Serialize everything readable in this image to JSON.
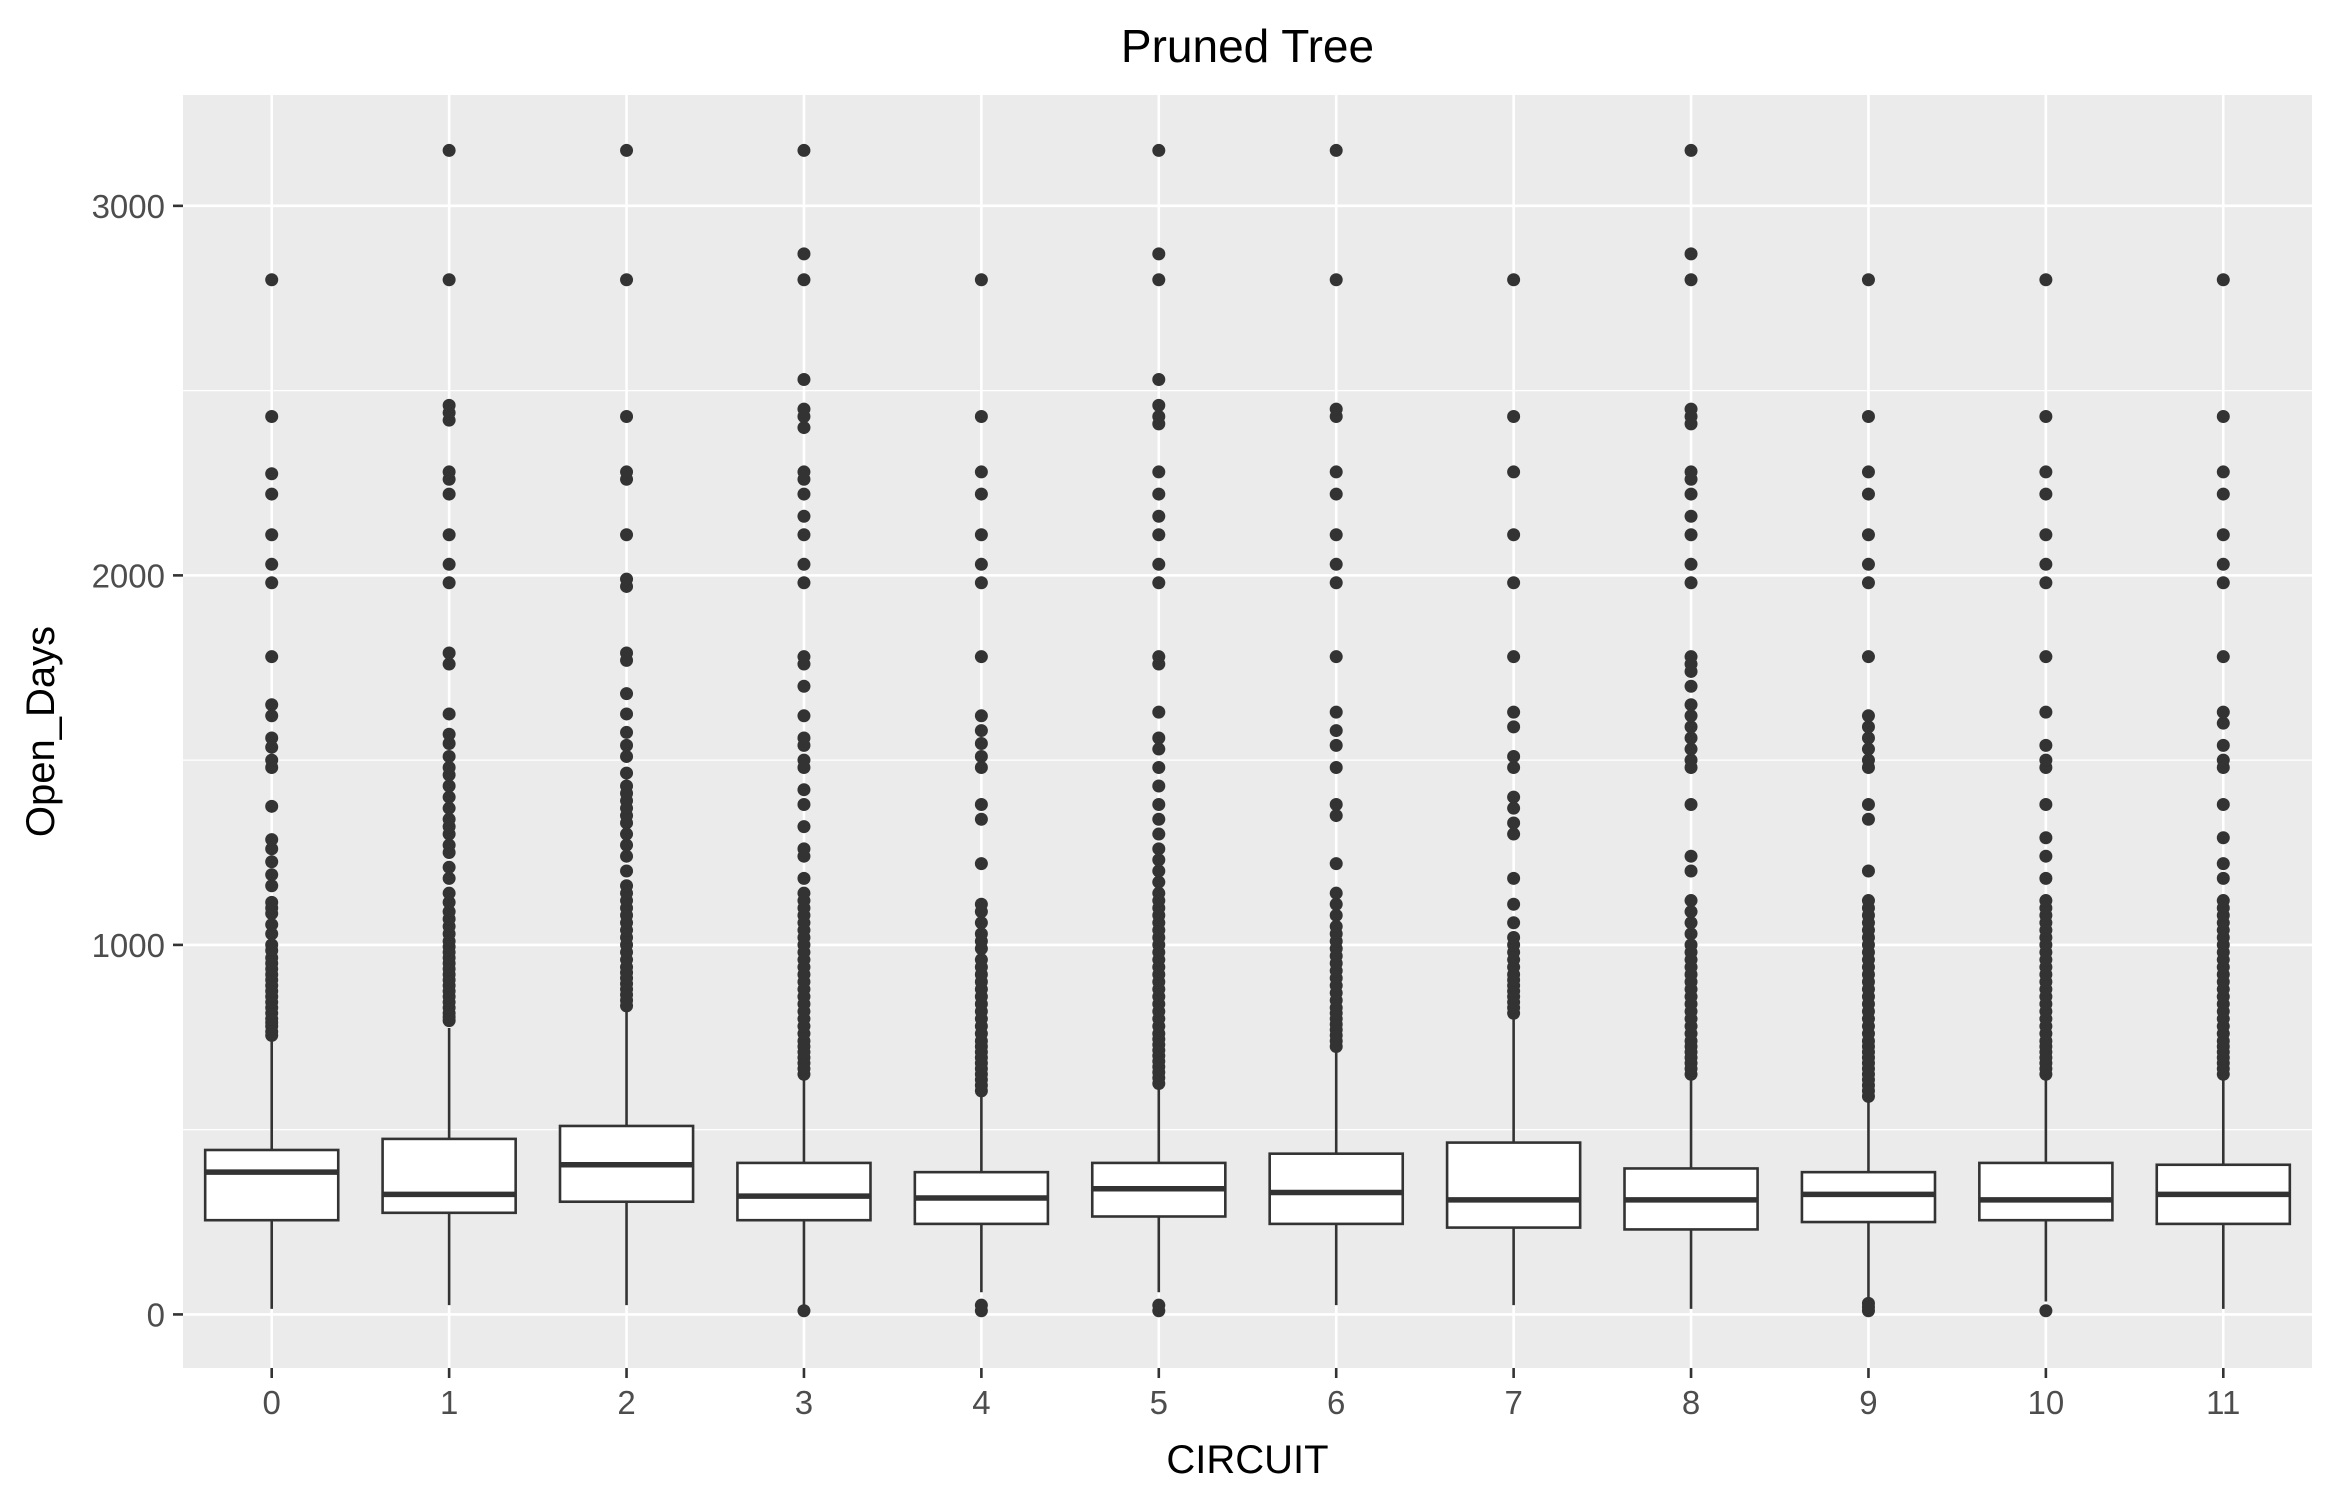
{
  "chart_data": {
    "type": "boxplot",
    "title": "Pruned Tree",
    "xlabel": "CIRCUIT",
    "ylabel": "Open_Days",
    "categories": [
      "0",
      "1",
      "2",
      "3",
      "4",
      "5",
      "6",
      "7",
      "8",
      "9",
      "10",
      "11"
    ],
    "ylim": [
      -145,
      3300
    ],
    "y_ticks": [
      0,
      1000,
      2000,
      3000
    ],
    "y_tick_labels": [
      "0",
      "1000",
      "2000",
      "3000"
    ],
    "grid": true,
    "legend": "none",
    "colors": {
      "panel_background": "#ebebeb",
      "grid_major": "#ffffff",
      "box_fill": "#ffffff",
      "box_stroke": "#333333",
      "outlier": "#333333",
      "tick_label": "#4d4d4d"
    },
    "boxes": [
      {
        "category": "0",
        "whisker_low": 15,
        "q1": 255,
        "median": 385,
        "q3": 445,
        "whisker_high": 745,
        "outliers": [
          755,
          765,
          780,
          790,
          800,
          815,
          830,
          845,
          860,
          875,
          890,
          905,
          920,
          935,
          950,
          965,
          985,
          1000,
          1030,
          1055,
          1085,
          1100,
          1115,
          1160,
          1190,
          1225,
          1260,
          1285,
          1375,
          1480,
          1500,
          1535,
          1560,
          1620,
          1650,
          1780,
          1980,
          2030,
          2110,
          2220,
          2275,
          2430,
          2800
        ]
      },
      {
        "category": "1",
        "whisker_low": 25,
        "q1": 275,
        "median": 325,
        "q3": 475,
        "whisker_high": 775,
        "outliers": [
          795,
          805,
          815,
          830,
          845,
          860,
          875,
          890,
          905,
          920,
          935,
          950,
          965,
          980,
          995,
          1010,
          1030,
          1050,
          1070,
          1090,
          1115,
          1140,
          1180,
          1210,
          1250,
          1270,
          1300,
          1320,
          1340,
          1370,
          1400,
          1430,
          1460,
          1480,
          1510,
          1545,
          1570,
          1625,
          1760,
          1790,
          1980,
          2030,
          2110,
          2220,
          2260,
          2280,
          2420,
          2440,
          2460,
          2800,
          3150
        ]
      },
      {
        "category": "2",
        "whisker_low": 25,
        "q1": 305,
        "median": 405,
        "q3": 510,
        "whisker_high": 825,
        "outliers": [
          835,
          850,
          865,
          880,
          895,
          910,
          925,
          940,
          960,
          980,
          1000,
          1020,
          1040,
          1060,
          1080,
          1100,
          1120,
          1140,
          1160,
          1200,
          1240,
          1270,
          1300,
          1330,
          1350,
          1370,
          1390,
          1410,
          1430,
          1465,
          1510,
          1540,
          1575,
          1625,
          1680,
          1770,
          1790,
          1970,
          1990,
          2110,
          2260,
          2280,
          2430,
          2800,
          3150
        ]
      },
      {
        "category": "3",
        "whisker_low": 25,
        "q1": 255,
        "median": 320,
        "q3": 410,
        "whisker_high": 640,
        "outliers": [
          10,
          650,
          665,
          680,
          695,
          710,
          725,
          740,
          760,
          780,
          800,
          820,
          840,
          860,
          880,
          900,
          920,
          940,
          960,
          980,
          1000,
          1020,
          1040,
          1060,
          1080,
          1100,
          1120,
          1140,
          1180,
          1240,
          1260,
          1320,
          1380,
          1420,
          1480,
          1500,
          1540,
          1560,
          1620,
          1700,
          1760,
          1780,
          1980,
          2030,
          2110,
          2160,
          2220,
          2260,
          2280,
          2400,
          2430,
          2450,
          2530,
          2800,
          2870,
          3150
        ]
      },
      {
        "category": "4",
        "whisker_low": 60,
        "q1": 245,
        "median": 315,
        "q3": 385,
        "whisker_high": 595,
        "outliers": [
          10,
          25,
          605,
          620,
          635,
          650,
          665,
          680,
          695,
          710,
          725,
          740,
          760,
          780,
          800,
          820,
          840,
          860,
          880,
          900,
          920,
          940,
          960,
          990,
          1010,
          1030,
          1060,
          1090,
          1110,
          1220,
          1340,
          1380,
          1480,
          1510,
          1545,
          1580,
          1620,
          1780,
          1980,
          2030,
          2110,
          2220,
          2280,
          2430,
          2800
        ]
      },
      {
        "category": "5",
        "whisker_low": 60,
        "q1": 265,
        "median": 340,
        "q3": 410,
        "whisker_high": 615,
        "outliers": [
          10,
          25,
          625,
          640,
          655,
          670,
          685,
          700,
          715,
          730,
          745,
          760,
          780,
          800,
          820,
          840,
          860,
          880,
          900,
          920,
          940,
          960,
          980,
          1000,
          1020,
          1040,
          1060,
          1080,
          1100,
          1120,
          1140,
          1170,
          1200,
          1230,
          1260,
          1300,
          1340,
          1380,
          1430,
          1480,
          1530,
          1560,
          1630,
          1760,
          1780,
          1980,
          2030,
          2110,
          2160,
          2220,
          2280,
          2410,
          2430,
          2460,
          2530,
          2800,
          2870,
          3150
        ]
      },
      {
        "category": "6",
        "whisker_low": 25,
        "q1": 245,
        "median": 330,
        "q3": 435,
        "whisker_high": 715,
        "outliers": [
          725,
          740,
          755,
          770,
          785,
          800,
          815,
          830,
          850,
          870,
          890,
          910,
          930,
          950,
          970,
          990,
          1010,
          1030,
          1050,
          1080,
          1110,
          1140,
          1220,
          1350,
          1380,
          1480,
          1540,
          1580,
          1630,
          1780,
          1980,
          2030,
          2110,
          2220,
          2280,
          2430,
          2450,
          2800,
          3150
        ]
      },
      {
        "category": "7",
        "whisker_low": 25,
        "q1": 235,
        "median": 310,
        "q3": 465,
        "whisker_high": 805,
        "outliers": [
          815,
          830,
          845,
          860,
          875,
          890,
          905,
          920,
          940,
          960,
          980,
          1000,
          1020,
          1060,
          1110,
          1180,
          1300,
          1330,
          1370,
          1400,
          1480,
          1510,
          1590,
          1630,
          1780,
          1980,
          2110,
          2280,
          2430,
          2800
        ]
      },
      {
        "category": "8",
        "whisker_low": 15,
        "q1": 230,
        "median": 310,
        "q3": 395,
        "whisker_high": 640,
        "outliers": [
          650,
          665,
          680,
          695,
          710,
          725,
          740,
          760,
          780,
          800,
          820,
          840,
          860,
          880,
          900,
          920,
          940,
          960,
          980,
          1000,
          1030,
          1060,
          1090,
          1120,
          1200,
          1240,
          1380,
          1480,
          1500,
          1530,
          1560,
          1590,
          1620,
          1650,
          1700,
          1740,
          1760,
          1780,
          1980,
          2030,
          2110,
          2160,
          2220,
          2260,
          2280,
          2410,
          2430,
          2450,
          2800,
          2870,
          3150
        ]
      },
      {
        "category": "9",
        "whisker_low": 45,
        "q1": 250,
        "median": 325,
        "q3": 385,
        "whisker_high": 580,
        "outliers": [
          10,
          20,
          30,
          590,
          605,
          620,
          635,
          650,
          665,
          680,
          695,
          710,
          725,
          740,
          760,
          780,
          800,
          820,
          840,
          860,
          880,
          900,
          920,
          940,
          960,
          980,
          1000,
          1020,
          1040,
          1060,
          1080,
          1100,
          1120,
          1200,
          1340,
          1380,
          1480,
          1500,
          1530,
          1560,
          1590,
          1620,
          1780,
          1980,
          2030,
          2110,
          2220,
          2280,
          2430,
          2800
        ]
      },
      {
        "category": "10",
        "whisker_low": 35,
        "q1": 255,
        "median": 310,
        "q3": 410,
        "whisker_high": 640,
        "outliers": [
          10,
          650,
          665,
          680,
          695,
          710,
          725,
          740,
          760,
          780,
          800,
          820,
          840,
          860,
          880,
          900,
          920,
          940,
          960,
          980,
          1000,
          1020,
          1040,
          1060,
          1080,
          1100,
          1120,
          1180,
          1240,
          1290,
          1380,
          1480,
          1500,
          1540,
          1630,
          1780,
          1980,
          2030,
          2110,
          2220,
          2280,
          2430,
          2800
        ]
      },
      {
        "category": "11",
        "whisker_low": 15,
        "q1": 245,
        "median": 325,
        "q3": 405,
        "whisker_high": 640,
        "outliers": [
          650,
          665,
          680,
          695,
          710,
          725,
          740,
          760,
          780,
          800,
          820,
          840,
          860,
          880,
          900,
          920,
          940,
          960,
          980,
          1000,
          1020,
          1040,
          1060,
          1080,
          1100,
          1120,
          1180,
          1220,
          1290,
          1380,
          1480,
          1500,
          1540,
          1600,
          1630,
          1780,
          1980,
          2030,
          2110,
          2220,
          2280,
          2430,
          2800
        ]
      }
    ]
  }
}
